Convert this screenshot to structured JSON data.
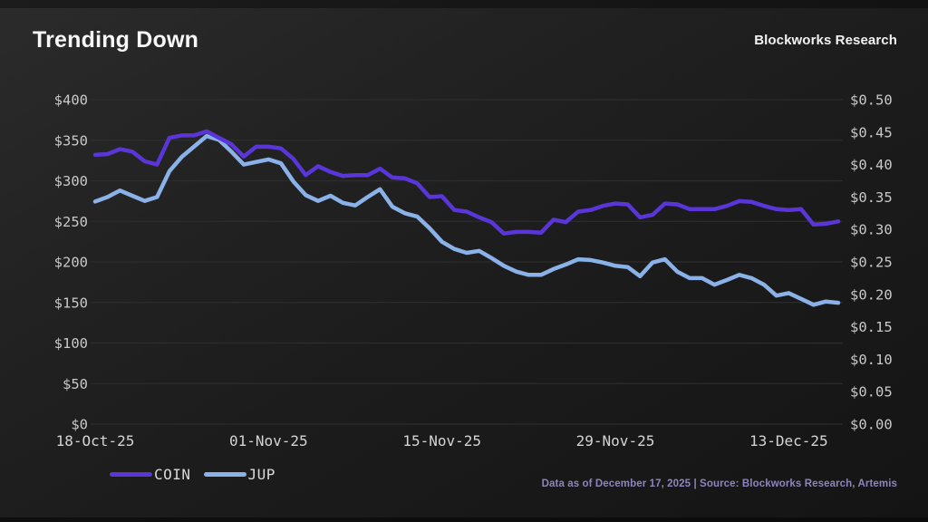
{
  "header": {
    "title": "Trending Down",
    "brand": "Blockworks Research"
  },
  "footer": {
    "text": "Data as of December 17, 2025 | Source: Blockworks Research, Artemis"
  },
  "colors": {
    "background": "#1e1e1e",
    "grid": "#2d2d2d",
    "axis_text": "#c9c9c9",
    "coin_line": "#5a36d8",
    "jup_line": "#8ab1e8",
    "footer_text": "#8c85bd"
  },
  "chart_data": {
    "type": "line",
    "title": "Trending Down",
    "grid": "horizontal",
    "legend_position": "bottom-left",
    "n_points": 61,
    "x_tick_labels": [
      "18-Oct-25",
      "01-Nov-25",
      "15-Nov-25",
      "29-Nov-25",
      "13-Dec-25"
    ],
    "x_tick_indices": [
      0,
      14,
      28,
      42,
      56
    ],
    "left_axis": {
      "min": 0,
      "max": 400,
      "tick_labels": [
        "$400",
        "$350",
        "$300",
        "$250",
        "$200",
        "$150",
        "$100",
        "$50",
        "$0"
      ]
    },
    "right_axis": {
      "min": 0,
      "max": 0.5,
      "tick_labels": [
        "$0.50",
        "$0.45",
        "$0.40",
        "$0.35",
        "$0.30",
        "$0.25",
        "$0.20",
        "$0.15",
        "$0.10",
        "$0.05",
        "$0.00"
      ]
    },
    "series": [
      {
        "name": "COIN",
        "axis": "left",
        "color": "#5a36d8",
        "values": [
          332,
          333,
          339,
          336,
          324,
          320,
          353,
          356,
          356,
          361,
          353,
          345,
          330,
          342,
          342,
          340,
          327,
          307,
          318,
          311,
          306,
          307,
          307,
          315,
          304,
          303,
          297,
          280,
          281,
          264,
          262,
          255,
          249,
          235,
          237,
          237,
          236,
          252,
          249,
          262,
          264,
          269,
          272,
          271,
          255,
          258,
          272,
          271,
          265,
          265,
          265,
          269,
          275,
          274,
          269,
          265,
          264,
          265,
          246,
          247,
          250
        ]
      },
      {
        "name": "JUP",
        "axis": "right",
        "color": "#8ab1e8",
        "values": [
          0.343,
          0.35,
          0.36,
          0.352,
          0.344,
          0.35,
          0.39,
          0.412,
          0.428,
          0.444,
          0.438,
          0.42,
          0.4,
          0.404,
          0.408,
          0.402,
          0.374,
          0.353,
          0.344,
          0.352,
          0.341,
          0.337,
          0.35,
          0.362,
          0.335,
          0.325,
          0.32,
          0.302,
          0.281,
          0.27,
          0.264,
          0.267,
          0.256,
          0.244,
          0.235,
          0.23,
          0.23,
          0.239,
          0.246,
          0.254,
          0.253,
          0.249,
          0.244,
          0.242,
          0.228,
          0.249,
          0.254,
          0.235,
          0.225,
          0.225,
          0.215,
          0.222,
          0.23,
          0.225,
          0.215,
          0.198,
          0.202,
          0.193,
          0.184,
          0.189,
          0.187
        ]
      }
    ]
  }
}
